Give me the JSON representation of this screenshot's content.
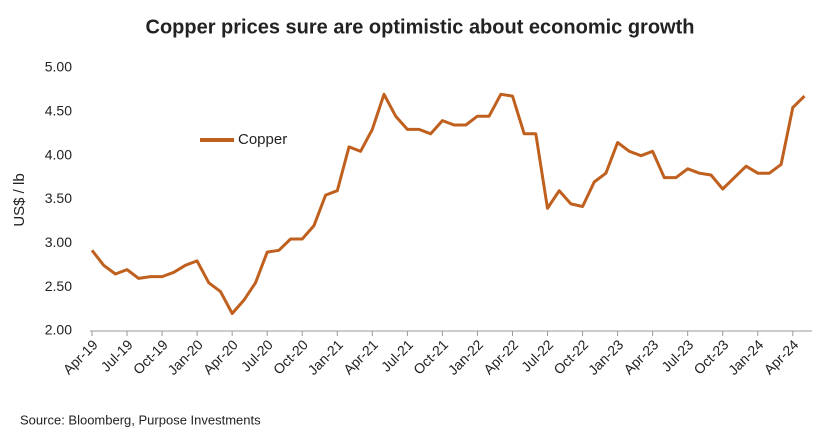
{
  "chart_data": {
    "type": "line",
    "title": "Copper prices sure are optimistic about economic growth",
    "y_label": "US$ / lb",
    "source": "Source: Bloomberg, Purpose Investments",
    "categories": [
      "Apr-19",
      null,
      null,
      "Jul-19",
      null,
      null,
      "Oct-19",
      null,
      null,
      "Jan-20",
      null,
      null,
      "Apr-20",
      null,
      null,
      "Jul-20",
      null,
      null,
      "Oct-20",
      null,
      null,
      "Jan-21",
      null,
      null,
      "Apr-21",
      null,
      null,
      "Jul-21",
      null,
      null,
      "Oct-21",
      null,
      null,
      "Jan-22",
      null,
      null,
      "Apr-22",
      null,
      null,
      "Jul-22",
      null,
      null,
      "Oct-22",
      null,
      null,
      "Jan-23",
      null,
      null,
      "Apr-23",
      null,
      null,
      "Jul-23",
      null,
      null,
      "Oct-23",
      null,
      null,
      "Jan-24",
      null,
      null,
      "Apr-24",
      null
    ],
    "series": [
      {
        "name": "Copper",
        "color": "#c0601f",
        "values": [
          2.92,
          2.75,
          2.65,
          2.7,
          2.6,
          2.62,
          2.62,
          2.67,
          2.75,
          2.8,
          2.55,
          2.45,
          2.2,
          2.35,
          2.55,
          2.9,
          2.92,
          3.05,
          3.05,
          3.2,
          3.55,
          3.6,
          4.1,
          4.05,
          4.3,
          4.7,
          4.45,
          4.3,
          4.3,
          4.25,
          4.4,
          4.35,
          4.35,
          4.45,
          4.45,
          4.7,
          4.68,
          4.25,
          4.25,
          3.4,
          3.6,
          3.45,
          3.42,
          3.7,
          3.8,
          4.15,
          4.05,
          4.0,
          4.05,
          3.75,
          3.75,
          3.85,
          3.8,
          3.78,
          3.62,
          3.75,
          3.88,
          3.8,
          3.8,
          3.9,
          4.55,
          4.68
        ]
      }
    ],
    "ylim": [
      2,
      5
    ],
    "yticks": [
      {
        "value": 2,
        "label": "2.00"
      },
      {
        "value": 2.5,
        "label": "2.50"
      },
      {
        "value": 3,
        "label": "3.00"
      },
      {
        "value": 3.5,
        "label": "3.50"
      },
      {
        "value": 4,
        "label": "4.00"
      },
      {
        "value": 4.5,
        "label": "4.50"
      },
      {
        "value": 5,
        "label": "5.00"
      }
    ],
    "grid": false,
    "legend": "upper left"
  }
}
